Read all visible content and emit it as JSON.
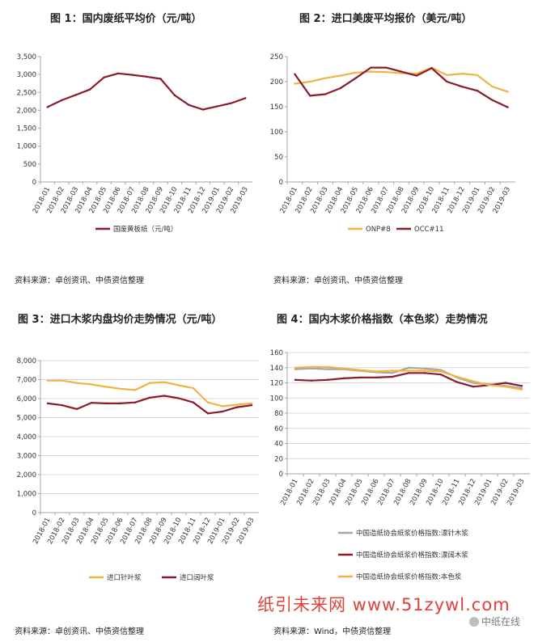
{
  "colors": {
    "dark_red": "#8b1a2b",
    "gold": "#f0b445",
    "gray": "#a6a6a6",
    "grid": "#d9d9d9",
    "axis": "#a6a6a6",
    "watermark": "#e0413a"
  },
  "watermark": {
    "text": "纸引未来网 www.51zywl.com"
  },
  "brand": {
    "icon": "wechat-icon",
    "text": "中纸在线"
  },
  "chart_data": [
    {
      "id": "fig1",
      "type": "line",
      "title": "图 1：国内废纸平均价（元/吨）",
      "source": "资料来源：卓创资讯、中债资信整理",
      "categories": [
        "2018-01",
        "2018-02",
        "2018-03",
        "2018-04",
        "2018-05",
        "2018-06",
        "2018-07",
        "2018-08",
        "2018-09",
        "2018-10",
        "2018-11",
        "2018-12",
        "2019-01",
        "2019-02",
        "2019-03"
      ],
      "ylim": [
        0,
        3500
      ],
      "yticks": [
        "0",
        "500",
        "1,000",
        "1,500",
        "2,000",
        "2,500",
        "3,000",
        "3,500"
      ],
      "legend_position": "bottom",
      "grid": false,
      "series": [
        {
          "name": "国废黄板纸（元/吨）",
          "color": "#8b1a2b",
          "values": [
            2090,
            2280,
            2430,
            2580,
            2920,
            3030,
            2990,
            2940,
            2880,
            2420,
            2150,
            2020,
            2110,
            2200,
            2340
          ]
        }
      ]
    },
    {
      "id": "fig2",
      "type": "line",
      "title": "图 2：进口美废平均报价（美元/吨）",
      "source": "资料来源：卓创资讯、中债资信整理",
      "categories": [
        "2018-01",
        "2018-02",
        "2018-03",
        "2018-04",
        "2018-05",
        "2018-06",
        "2018-07",
        "2018-08",
        "2018-09",
        "2018-10",
        "2018-11",
        "2018-12",
        "2019-01",
        "2019-02",
        "2019-03"
      ],
      "ylim": [
        0,
        250
      ],
      "yticks": [
        "0",
        "50",
        "100",
        "150",
        "200",
        "250"
      ],
      "legend_position": "bottom",
      "grid": false,
      "series": [
        {
          "name": "ONP#8",
          "color": "#f0b445",
          "values": [
            196,
            200,
            207,
            212,
            218,
            220,
            219,
            217,
            216,
            228,
            213,
            216,
            213,
            190,
            180
          ]
        },
        {
          "name": "OCC#11",
          "color": "#8b1a2b",
          "values": [
            215,
            172,
            175,
            187,
            207,
            228,
            228,
            220,
            212,
            227,
            200,
            190,
            182,
            163,
            149
          ]
        }
      ]
    },
    {
      "id": "fig3",
      "type": "line",
      "title": "图 3：进口木浆内盘均价走势情况（元/吨）",
      "source": "资料来源：卓创资讯、中债资信整理",
      "categories": [
        "2018-01",
        "2018-02",
        "2018-03",
        "2018-04",
        "2018-05",
        "2018-06",
        "2018-07",
        "2018-08",
        "2018-09",
        "2018-10",
        "2018-11",
        "2018-12",
        "2019-01",
        "2019-02",
        "2019-03"
      ],
      "ylim": [
        0,
        8000
      ],
      "yticks": [
        "0",
        "1,000",
        "2,000",
        "3,000",
        "4,000",
        "5,000",
        "6,000",
        "7,000",
        "8,000"
      ],
      "legend_position": "bottom",
      "grid": true,
      "series": [
        {
          "name": "进口针叶浆",
          "color": "#f0b445",
          "values": [
            6950,
            6950,
            6820,
            6750,
            6620,
            6520,
            6450,
            6820,
            6870,
            6700,
            6550,
            5800,
            5600,
            5680,
            5750
          ]
        },
        {
          "name": "进口阔叶浆",
          "color": "#8b1a2b",
          "values": [
            5750,
            5650,
            5450,
            5780,
            5750,
            5750,
            5800,
            6050,
            6150,
            6020,
            5800,
            5220,
            5320,
            5550,
            5650
          ]
        }
      ]
    },
    {
      "id": "fig4",
      "type": "line",
      "title": "图 4：国内木浆价格指数（本色浆）走势情况",
      "source": "资料来源：Wind，中债资信整理",
      "categories": [
        "2018-01",
        "2018-02",
        "2018-03",
        "2018-04",
        "2018-05",
        "2018-06",
        "2018-07",
        "2018-08",
        "2018-09",
        "2018-10",
        "2018-11",
        "2018-12",
        "2019-01",
        "2019-02",
        "2019-03"
      ],
      "ylim": [
        0,
        160
      ],
      "yticks": [
        "0",
        "20",
        "40",
        "60",
        "80",
        "100",
        "120",
        "140",
        "160"
      ],
      "legend_position": "bottom",
      "grid": true,
      "series": [
        {
          "name": "中国造纸协会纸浆价格指数:漂针木浆",
          "color": "#a6a6a6",
          "values": [
            138,
            139,
            138,
            138,
            136,
            134,
            133,
            140,
            139,
            137,
            127,
            120,
            118,
            116,
            113
          ]
        },
        {
          "name": "中国造纸协会纸浆价格指数:漂阔木浆",
          "color": "#8b1a2b",
          "values": [
            124,
            123,
            124,
            126,
            127,
            127,
            128,
            133,
            133,
            131,
            121,
            115,
            117,
            120,
            116
          ]
        },
        {
          "name": "中国造纸协会纸浆价格指数:本色浆",
          "color": "#f0b445",
          "values": [
            140,
            141,
            141,
            139,
            137,
            135,
            136,
            136,
            136,
            135,
            128,
            122,
            117,
            115,
            111
          ]
        }
      ]
    }
  ]
}
